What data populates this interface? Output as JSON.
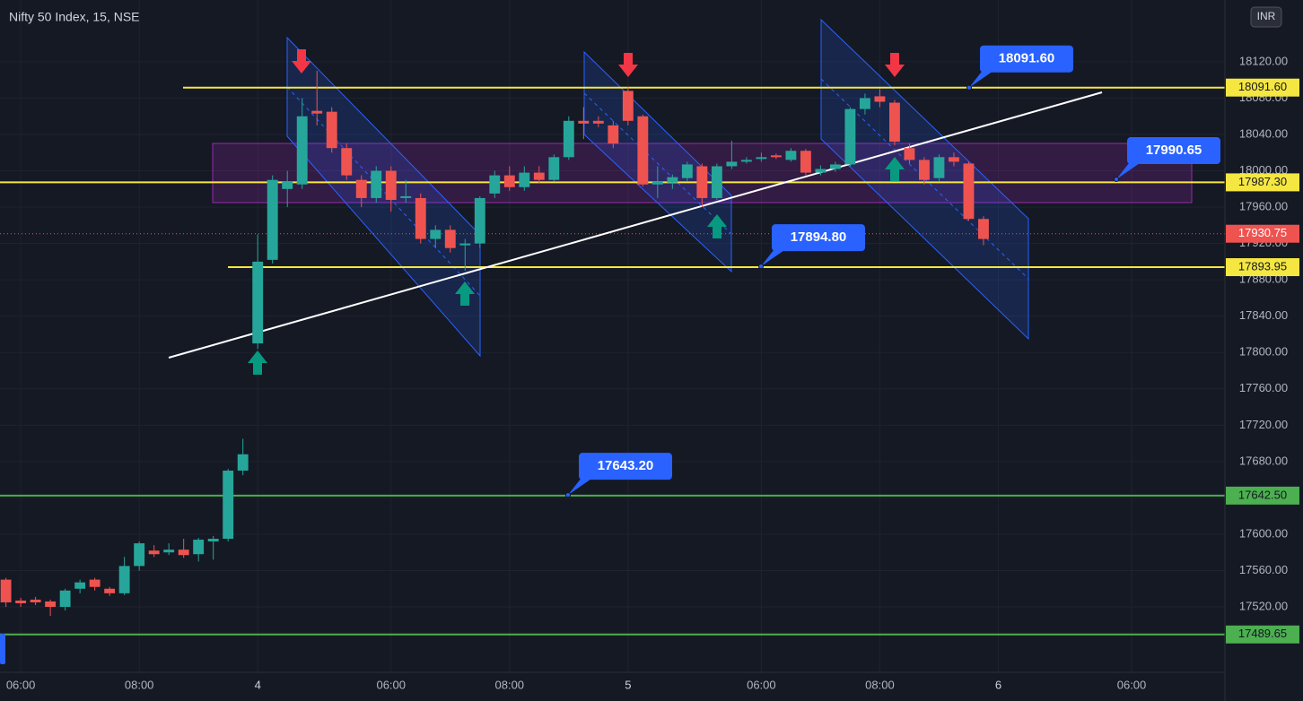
{
  "chart_data": {
    "type": "candlestick",
    "title": "Nifty 50 Index, 15, NSE",
    "currency": "INR",
    "colors": {
      "up": "#26a69a",
      "down": "#ef5350"
    },
    "open": [
      17550,
      17527,
      17528,
      17526,
      17520,
      17540,
      17550,
      17540,
      17535,
      17565,
      17582,
      17580,
      17583,
      17578,
      17592,
      17595,
      17670,
      17810,
      17902,
      17980,
      17985,
      18066,
      18065,
      18025,
      17990,
      17970,
      18000,
      17970,
      17970,
      17925,
      17935,
      17918,
      17920,
      17975,
      17995,
      17982,
      17998,
      17990,
      18015,
      18055,
      18055,
      18050,
      18088,
      18060,
      17985,
      17987,
      17992,
      18005,
      17970,
      18005,
      18010,
      18013,
      18017,
      18012,
      18022,
      17998,
      18002,
      18007,
      18068,
      18082,
      18075,
      18025,
      18012,
      17992,
      18015,
      18008,
      17947
    ],
    "high": [
      17552,
      17530,
      17531,
      17528,
      17540,
      17550,
      17552,
      17542,
      17575,
      17592,
      17588,
      17590,
      17595,
      17596,
      17598,
      17672,
      17705,
      17930,
      17995,
      18000,
      18080,
      18110,
      18070,
      18030,
      17995,
      18005,
      18005,
      17990,
      17975,
      17940,
      17940,
      17925,
      17972,
      18000,
      18005,
      18005,
      18005,
      18018,
      18060,
      18070,
      18060,
      18055,
      18092,
      18062,
      18005,
      17996,
      18010,
      18008,
      18008,
      18033,
      18015,
      18020,
      18019,
      18025,
      18024,
      18006,
      18010,
      18070,
      18085,
      18090,
      18078,
      18030,
      18015,
      18018,
      18020,
      18010,
      17950
    ],
    "low": [
      17520,
      17520,
      17522,
      17510,
      17516,
      17535,
      17538,
      17532,
      17533,
      17560,
      17575,
      17577,
      17574,
      17570,
      17572,
      17592,
      17665,
      17804,
      17898,
      17960,
      17980,
      18050,
      18020,
      17990,
      17960,
      17965,
      17955,
      17965,
      17920,
      17915,
      17910,
      17890,
      17915,
      17970,
      17978,
      17978,
      17986,
      17988,
      18012,
      18035,
      18048,
      18025,
      18050,
      17983,
      17970,
      17980,
      17988,
      17960,
      17968,
      18002,
      18008,
      18010,
      18013,
      18010,
      17995,
      17995,
      17999,
      18005,
      18062,
      18070,
      18028,
      18008,
      17985,
      17988,
      18005,
      17945,
      17918
    ],
    "close": [
      17525,
      17524,
      17525,
      17520,
      17538,
      17547,
      17542,
      17535,
      17565,
      17590,
      17578,
      17583,
      17577,
      17594,
      17595,
      17670,
      17688,
      17900,
      17990,
      17988,
      18060,
      18063,
      18025,
      17995,
      17970,
      18000,
      17968,
      17972,
      17925,
      17935,
      17915,
      17920,
      17970,
      17995,
      17982,
      17998,
      17990,
      18015,
      18055,
      18052,
      18052,
      18030,
      18055,
      17985,
      17988,
      17993,
      18007,
      17970,
      18005,
      18010,
      18012,
      18015,
      18015,
      18022,
      17998,
      18002,
      18007,
      18068,
      18080,
      18076,
      18032,
      18012,
      17990,
      18015,
      18010,
      17947,
      17925
    ],
    "xlim": [
      -0.4,
      82.3
    ],
    "xticks": [
      {
        "value": 1,
        "label": "06:00"
      },
      {
        "value": 9,
        "label": "08:00"
      },
      {
        "value": 17,
        "label": "4"
      },
      {
        "value": 26,
        "label": "06:00"
      },
      {
        "value": 34,
        "label": "08:00"
      },
      {
        "value": 42,
        "label": "5"
      },
      {
        "value": 51,
        "label": "06:00"
      },
      {
        "value": 59,
        "label": "08:00"
      },
      {
        "value": 67,
        "label": "6"
      },
      {
        "value": 76,
        "label": "06:00"
      }
    ],
    "ylim": [
      17448,
      18188
    ],
    "yticks": [
      {
        "value": 17520,
        "label": "17520.00"
      },
      {
        "value": 17560,
        "label": "17560.00"
      },
      {
        "value": 17600,
        "label": "17600.00"
      },
      {
        "value": 17640,
        "label": "17640.00"
      },
      {
        "value": 17680,
        "label": "17680.00"
      },
      {
        "value": 17720,
        "label": "17720.00"
      },
      {
        "value": 17760,
        "label": "17760.00"
      },
      {
        "value": 17800,
        "label": "17800.00"
      },
      {
        "value": 17840,
        "label": "17840.00"
      },
      {
        "value": 17880,
        "label": "17880.00"
      },
      {
        "value": 17920,
        "label": "17920.00"
      },
      {
        "value": 17960,
        "label": "17960.00"
      },
      {
        "value": 18000,
        "label": "18000.00"
      },
      {
        "value": 18040,
        "label": "18040.00"
      },
      {
        "value": 18080,
        "label": "18080.00"
      },
      {
        "value": 18120,
        "label": "18120.00"
      }
    ],
    "last_price": {
      "value": 17930.75,
      "label": "17930.75",
      "color": "#ef5350"
    },
    "levels": [
      {
        "value": 18091.6,
        "label": "18091.60",
        "color": "#f5e642"
      },
      {
        "value": 17987.3,
        "label": "17987.30",
        "color": "#f5e642"
      },
      {
        "value": 17893.95,
        "label": "17893.95",
        "color": "#f5e642"
      },
      {
        "value": 17642.5,
        "label": "17642.50",
        "color": "#4caf50"
      },
      {
        "value": 17489.65,
        "label": "17489.65",
        "color": "#4caf50"
      }
    ],
    "annotations": [
      {
        "value": 18091.6,
        "label": "18091.60"
      },
      {
        "value": 17990.65,
        "label": "17990.65"
      },
      {
        "value": 17894.8,
        "label": "17894.80"
      },
      {
        "value": 17643.2,
        "label": "17643.20"
      }
    ]
  }
}
